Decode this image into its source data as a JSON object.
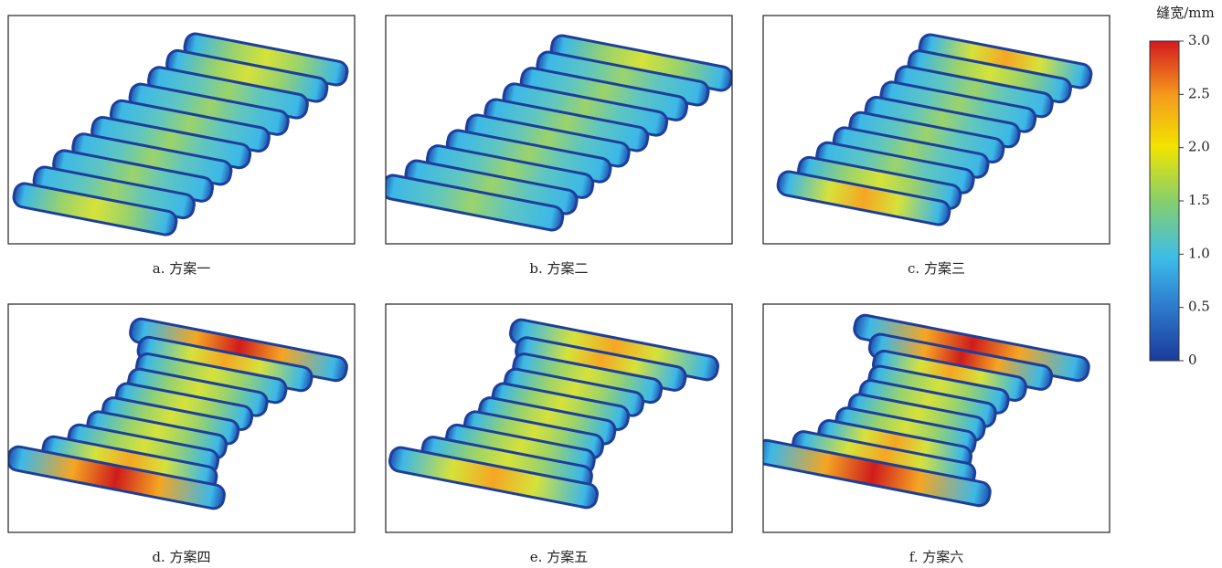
{
  "panels": [
    {
      "caption": "a. 方案一"
    },
    {
      "caption": "b. 方案二"
    },
    {
      "caption": "c. 方案三"
    },
    {
      "caption": "d. 方案四"
    },
    {
      "caption": "e. 方案五"
    },
    {
      "caption": "f. 方案六"
    }
  ],
  "colorbar": {
    "title": "缝宽/mm",
    "lim": [
      0,
      3
    ],
    "ticks": [
      0,
      0.5,
      {
        "value": 1,
        "label": "1.0"
      },
      1.5,
      {
        "value": 2,
        "label": "2.0"
      },
      2.5,
      {
        "value": 3,
        "label": "3.0"
      }
    ]
  }
}
